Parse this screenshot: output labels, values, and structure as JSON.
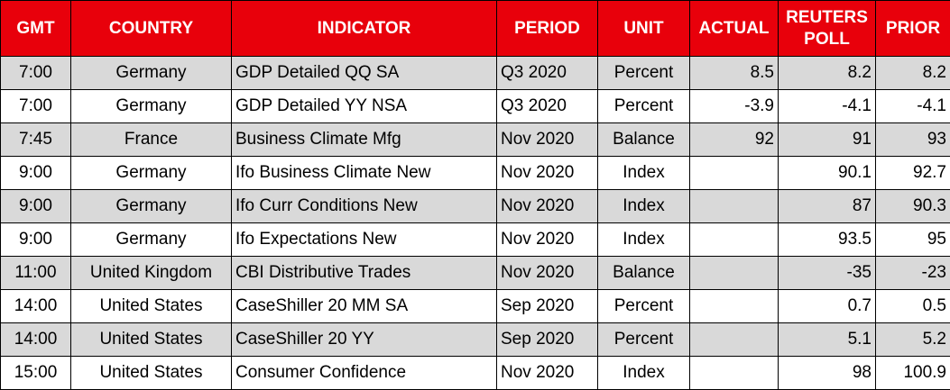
{
  "table": {
    "headers": [
      "GMT",
      "COUNTRY",
      "INDICATOR",
      "PERIOD",
      "UNIT",
      "ACTUAL",
      "REUTERS POLL",
      "PRIOR"
    ],
    "rows": [
      [
        "7:00",
        "Germany",
        "GDP Detailed QQ SA",
        "Q3 2020",
        "Percent",
        8.5,
        8.2,
        8.2
      ],
      [
        "7:00",
        "Germany",
        "GDP Detailed YY NSA",
        "Q3 2020",
        "Percent",
        -3.9,
        -4.1,
        -4.1
      ],
      [
        "7:45",
        "France",
        "Business Climate Mfg",
        "Nov 2020",
        "Balance",
        92,
        91,
        93
      ],
      [
        "9:00",
        "Germany",
        "Ifo Business Climate New",
        "Nov 2020",
        "Index",
        null,
        90.1,
        92.7
      ],
      [
        "9:00",
        "Germany",
        "Ifo Curr Conditions New",
        "Nov 2020",
        "Index",
        null,
        87,
        90.3
      ],
      [
        "9:00",
        "Germany",
        "Ifo Expectations New",
        "Nov 2020",
        "Index",
        null,
        93.5,
        95
      ],
      [
        "11:00",
        "United Kingdom",
        "CBI Distributive Trades",
        "Nov 2020",
        "Balance",
        null,
        -35,
        -23
      ],
      [
        "14:00",
        "United States",
        "CaseShiller 20 MM SA",
        "Sep 2020",
        "Percent",
        null,
        0.7,
        0.5
      ],
      [
        "14:00",
        "United States",
        "CaseShiller 20 YY",
        "Sep 2020",
        "Percent",
        null,
        5.1,
        5.2
      ],
      [
        "15:00",
        "United States",
        "Consumer Confidence",
        "Nov 2020",
        "Index",
        null,
        98,
        100.9
      ]
    ]
  }
}
